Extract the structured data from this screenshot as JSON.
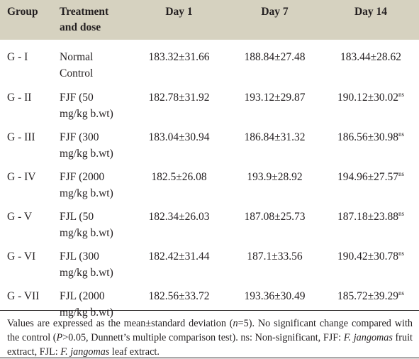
{
  "header": {
    "group": "Group",
    "treatment_line1": "Treatment",
    "treatment_line2": "and dose",
    "day1": "Day 1",
    "day7": "Day 7",
    "day14": "Day 14"
  },
  "rows": [
    {
      "group": "G - I",
      "trt1": "Normal",
      "trt2": "Control",
      "day1": "183.32±31.66",
      "day7": "188.84±27.48",
      "day14": "183.44±28.62",
      "sup": ""
    },
    {
      "group": "G - II",
      "trt1": "FJF (50",
      "trt2": "mg/kg b.wt)",
      "day1": "182.78±31.92",
      "day7": "193.12±29.87",
      "day14": "190.12±30.02",
      "sup": "ns"
    },
    {
      "group": "G - III",
      "trt1": "FJF (300",
      "trt2": "mg/kg b.wt)",
      "day1": "183.04±30.94",
      "day7": "186.84±31.32",
      "day14": "186.56±30.98",
      "sup": "ns"
    },
    {
      "group": "G - IV",
      "trt1": "FJF (2000",
      "trt2": "mg/kg b.wt)",
      "day1": "182.5±26.08",
      "day7": "193.9±28.92",
      "day14": "194.96±27.57",
      "sup": "ns"
    },
    {
      "group": "G - V",
      "trt1": "FJL (50",
      "trt2": "mg/kg b.wt)",
      "day1": "182.34±26.03",
      "day7": "187.08±25.73",
      "day14": "187.18±23.88",
      "sup": "ns"
    },
    {
      "group": "G - VI",
      "trt1": "FJL (300",
      "trt2": "mg/kg b.wt)",
      "day1": "182.42±31.44",
      "day7": "187.1±33.56",
      "day14": "190.42±30.78",
      "sup": "ns"
    },
    {
      "group": "G - VII",
      "trt1": "FJL (2000",
      "trt2": "mg/kg b.wt)",
      "day1": "182.56±33.72",
      "day7": "193.36±30.49",
      "day14": "185.72±39.29",
      "sup": "ns"
    }
  ],
  "footnote": {
    "p1": "Values are expressed as the mean±standard deviation (",
    "n_var": "n",
    "p2": "=5). No significant change compared with the control (",
    "p_var": "P",
    "p3": ">0.05, Dunnett’s multiple comparison test). ns: Non-significant, FJF: ",
    "species1": "F. jangomas",
    "p4": " fruit extract, FJL: ",
    "species2": "F. jangomas",
    "p5": " leaf extract."
  }
}
